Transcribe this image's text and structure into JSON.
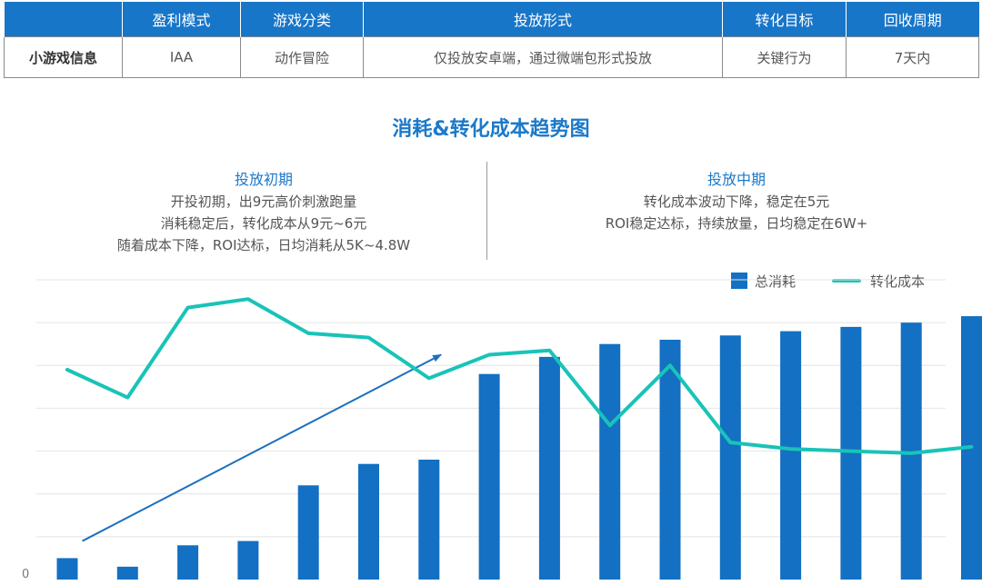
{
  "table": {
    "headers": [
      "",
      "盈利模式",
      "游戏分类",
      "投放形式",
      "转化目标",
      "回收周期"
    ],
    "row": [
      "小游戏信息",
      "IAA",
      "动作冒险",
      "仅投放安卓端，通过微端包形式投放",
      "关键行为",
      "7天内"
    ]
  },
  "chart_data": {
    "type": "bar",
    "title": "消耗&转化成本趋势图",
    "categories": [
      "",
      "",
      "",
      "",
      "",
      "",
      "",
      "",
      "",
      "",
      "",
      "",
      "",
      "",
      "",
      ""
    ],
    "series": [
      {
        "name": "总消耗",
        "type": "bar",
        "color": "#1370c2",
        "values": [
          0.5,
          0.3,
          0.8,
          0.9,
          2.2,
          2.7,
          2.8,
          4.8,
          5.2,
          5.5,
          5.6,
          5.7,
          5.8,
          5.9,
          6.0,
          6.15
        ]
      },
      {
        "name": "转化成本",
        "type": "line",
        "color": "#19c3b8",
        "values": [
          4.9,
          4.25,
          6.35,
          6.55,
          5.75,
          5.65,
          4.7,
          5.25,
          5.35,
          3.6,
          5.0,
          3.2,
          3.05,
          3.0,
          2.95,
          3.1
        ]
      }
    ],
    "y_ticks": [
      "0"
    ],
    "ylim": [
      0,
      7
    ],
    "grid": true,
    "legend": "top-right",
    "annotations": [
      {
        "title": "投放初期",
        "lines": [
          "开投初期，出9元高价刺激跑量",
          "消耗稳定后，转化成本从9元~6元",
          "随着成本下降，ROI达标，日均消耗从5K~4.8W"
        ]
      },
      {
        "title": "投放中期",
        "lines": [
          "转化成本波动下降，稳定在5元",
          "ROI稳定达标，持续放量，日均稳定在6W+"
        ]
      }
    ],
    "trend_arrow": {
      "from": [
        0.25,
        0.9
      ],
      "to": [
        6.2,
        5.25
      ],
      "color": "#1c6fc0"
    }
  }
}
